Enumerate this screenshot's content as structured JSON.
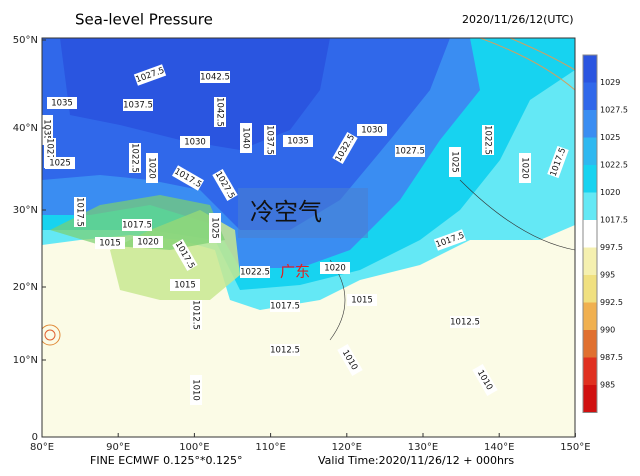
{
  "header": {
    "title": "Sea-level Pressure",
    "time": "2020/11/26/12(UTC)"
  },
  "map": {
    "lat_labels": [
      "50°N",
      "40°N",
      "30°N",
      "20°N",
      "10°N",
      "0"
    ],
    "lon_labels": [
      "80°E",
      "90°E",
      "100°E",
      "110°E",
      "120°E",
      "130°E",
      "140°E",
      "150°E"
    ],
    "contour_labels": [
      "1027.5",
      "1042.5",
      "1035",
      "1037.5",
      "1042.5",
      "1035",
      "1040",
      "1037.5",
      "1035",
      "1030",
      "1030",
      "1032.5",
      "1027.5",
      "1022.5",
      "1025",
      "1020",
      "1017.5",
      "1027.5",
      "1022.5",
      "1020",
      "1025",
      "1017.5",
      "1027.5",
      "1017.5",
      "1017.5",
      "1015",
      "1020",
      "1025",
      "1017.5",
      "1015",
      "1022.5",
      "1020",
      "1017.5",
      "1017.5",
      "1015",
      "1012.5",
      "1012.5",
      "1012.5",
      "1010",
      "1010",
      "1010"
    ],
    "annotations": [
      "冷空气",
      "广东"
    ]
  },
  "colorbar": {
    "labels": [
      "1029",
      "1027.5",
      "1025",
      "1022.5",
      "1020",
      "1017.5",
      "997.5",
      "995",
      "992.5",
      "990",
      "987.5",
      "985"
    ]
  },
  "footer": {
    "source": "FINE ECMWF 0.125°*0.125°",
    "valid": "Valid Time:2020/11/26/12 + 000hrs"
  }
}
